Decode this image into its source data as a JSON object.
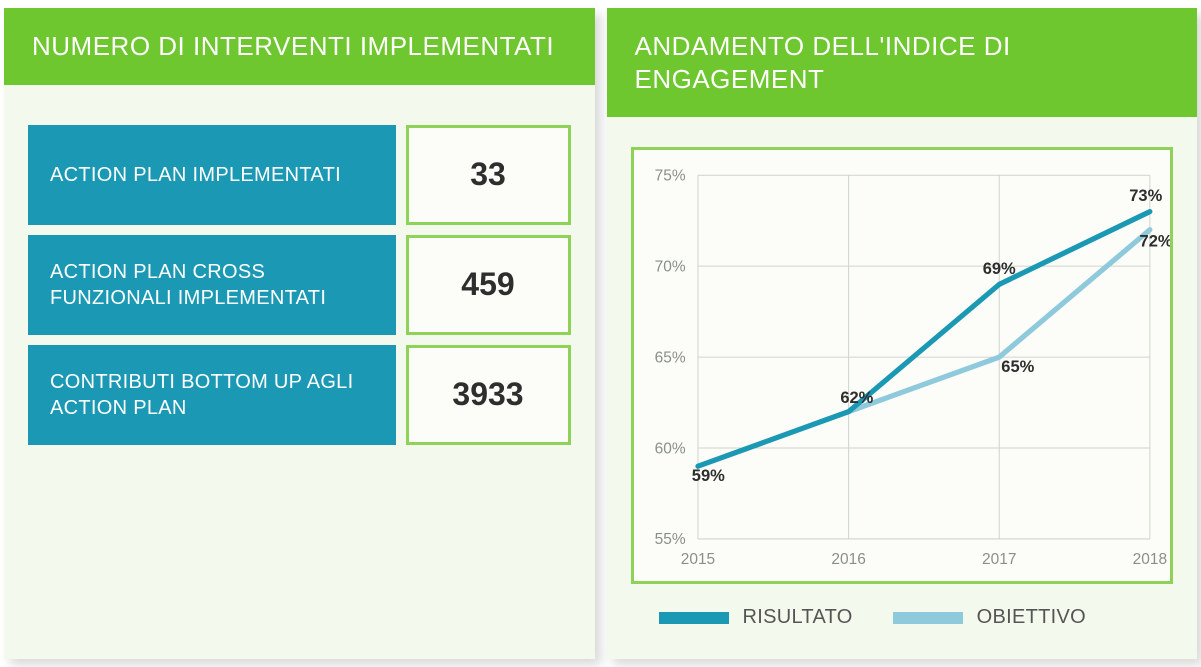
{
  "left_panel": {
    "title": "NUMERO DI  INTERVENTI IMPLEMENTATI",
    "rows": [
      {
        "label": "ACTION PLAN IMPLEMENTATI",
        "value": "33"
      },
      {
        "label": "ACTION PLAN CROSS FUNZIONALI IMPLEMENTATI",
        "value": "459"
      },
      {
        "label": "CONTRIBUTI BOTTOM UP AGLI ACTION PLAN",
        "value": "3933"
      }
    ],
    "label_bg": "#1b99b4",
    "label_color": "#ffffff",
    "value_border": "#8fd258",
    "value_bg": "#fcfdf9",
    "value_color": "#2e2e2e"
  },
  "right_panel": {
    "title": "ANDAMENTO DELL'INDICE DI ENGAGEMENT"
  },
  "chart": {
    "type": "line",
    "background_color": "#fcfdf9",
    "border_color": "#8fd258",
    "grid_color": "#d0d4cd",
    "axis_text_color": "#8a8f87",
    "axis_fontsize": 15,
    "label_fontsize": 16,
    "label_color": "#2e2e2e",
    "ylim": [
      55,
      75
    ],
    "ytick_step": 5,
    "yticks": [
      "55%",
      "60%",
      "65%",
      "70%",
      "75%"
    ],
    "xcategories": [
      "2015",
      "2016",
      "2017",
      "2018"
    ],
    "series": [
      {
        "name": "RISULTATO",
        "color": "#1b99b4",
        "line_width": 5,
        "values": [
          59,
          62,
          69,
          73
        ],
        "point_labels": [
          "59%",
          "62%",
          "69%",
          "73%"
        ]
      },
      {
        "name": "OBIETTIVO",
        "color": "#8ec9dc",
        "line_width": 5,
        "values": [
          null,
          62,
          65,
          72
        ],
        "point_labels": [
          null,
          null,
          "65%",
          "72%"
        ]
      }
    ]
  },
  "legend": {
    "items": [
      {
        "label": "RISULTATO",
        "color": "#1b99b4"
      },
      {
        "label": "OBIETTIVO",
        "color": "#8ec9dc"
      }
    ],
    "text_color": "#555555"
  },
  "colors": {
    "panel_bg": "#f3f9ed",
    "header_bg": "#6ec72e",
    "header_text": "#ffffff"
  }
}
